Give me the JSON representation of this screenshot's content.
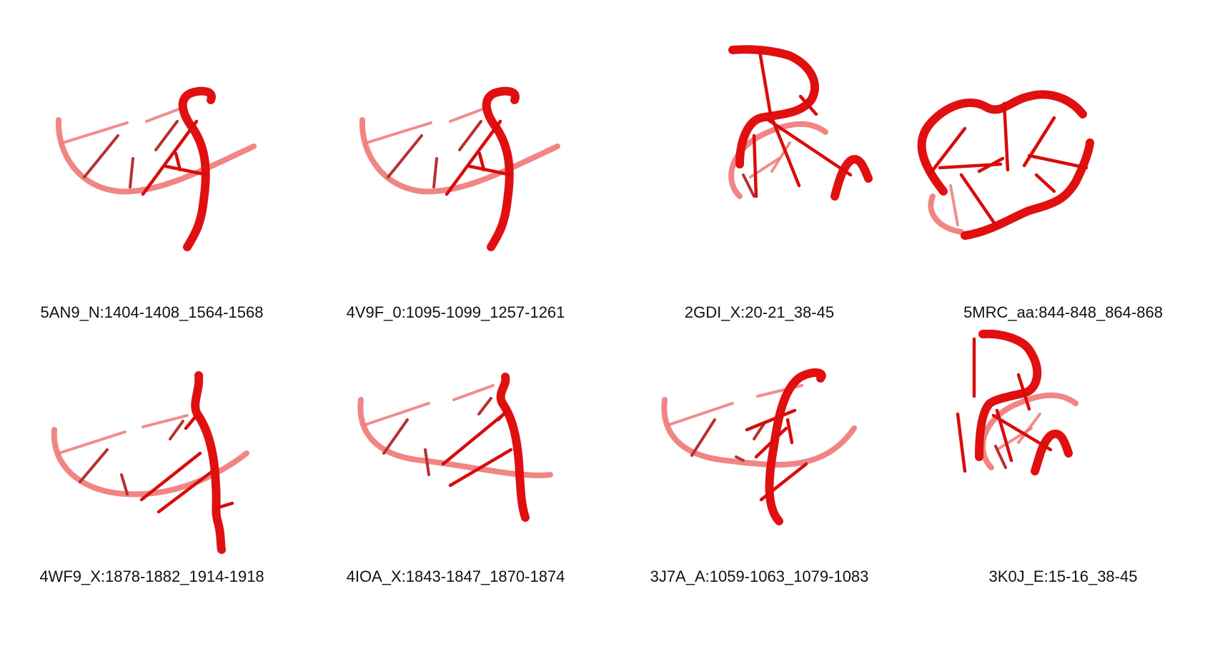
{
  "figure": {
    "structures": [
      {
        "label": "5AN9_N:1404-1408_1564-1568",
        "kind": "helix-crossing"
      },
      {
        "label": "4V9F_0:1095-1099_1257-1261",
        "kind": "helix-crossing"
      },
      {
        "label": "2GDI_X:20-21_38-45",
        "kind": "loop-knot"
      },
      {
        "label": "5MRC_aa:844-848_864-868",
        "kind": "closed-loop"
      },
      {
        "label": "4WF9_X:1878-1882_1914-1918",
        "kind": "helix-crossing"
      },
      {
        "label": "4IOA_X:1843-1847_1870-1874",
        "kind": "helix-crossing"
      },
      {
        "label": "3J7A_A:1059-1063_1079-1083",
        "kind": "helix-crossing"
      },
      {
        "label": "3K0J_E:15-16_38-45",
        "kind": "loop-knot"
      }
    ],
    "colors": {
      "backbone_front": "#e01010",
      "backbone_back": "#f07878",
      "base_pair": "#d80c0c",
      "background": "#ffffff"
    }
  }
}
